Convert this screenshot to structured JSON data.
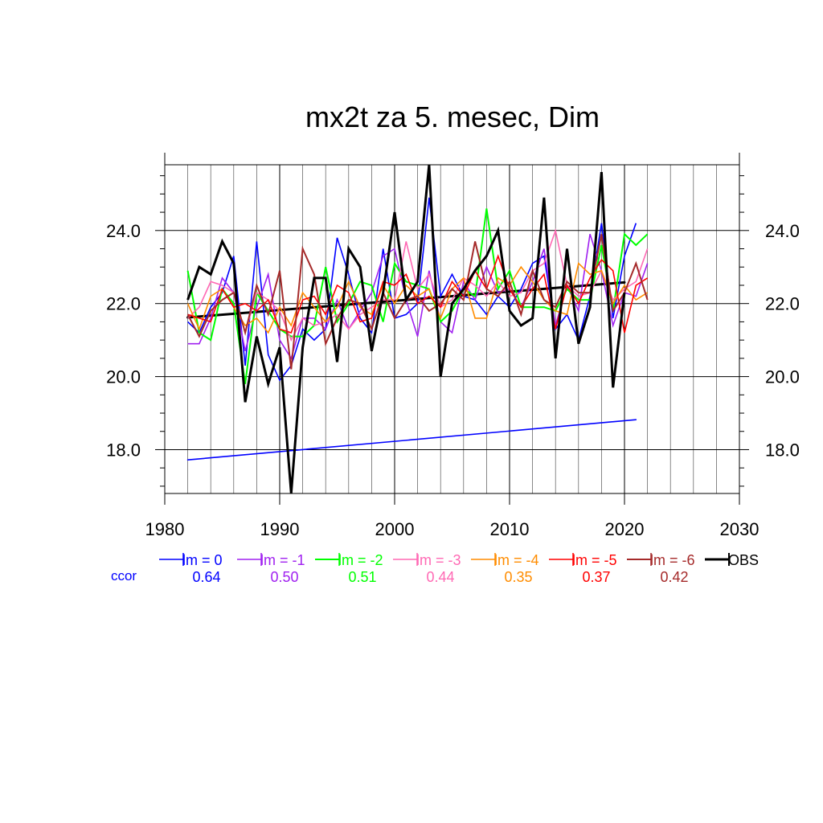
{
  "chart_data": {
    "type": "line",
    "title": "mx2t za 5. mesec, Dim",
    "xlabel": "",
    "ylabel": "",
    "xlim": [
      1980,
      2030
    ],
    "ylim": [
      16.8,
      25.8
    ],
    "x_ticks": [
      1980,
      1990,
      2000,
      2010,
      2020,
      2030
    ],
    "y_ticks": [
      18.0,
      20.0,
      22.0,
      24.0
    ],
    "y_tick_labels": [
      "18.0",
      "20.0",
      "22.0",
      "24.0"
    ],
    "grid": true,
    "legend_position": "bottom",
    "ccor_label": "ccor",
    "series": [
      {
        "name": "lm = 0",
        "color": "#0000ff",
        "ccor": "0.64",
        "width": 1.6,
        "x": [
          1982,
          1983,
          1984,
          1985,
          1986,
          1987,
          1988,
          1989,
          1990,
          1991,
          1992,
          1993,
          1994,
          1995,
          1996,
          1997,
          1998,
          1999,
          2000,
          2001,
          2002,
          2003,
          2004,
          2005,
          2006,
          2007,
          2008,
          2009,
          2010,
          2011,
          2012,
          2013,
          2014,
          2015,
          2016,
          2017,
          2018,
          2019,
          2020,
          2021
        ],
        "values": [
          21.5,
          21.2,
          21.9,
          22.3,
          23.3,
          20.3,
          23.7,
          20.6,
          19.9,
          20.3,
          21.3,
          21.0,
          21.3,
          23.8,
          22.8,
          21.6,
          21.2,
          23.5,
          21.6,
          21.7,
          22.0,
          24.9,
          22.2,
          22.8,
          22.2,
          22.1,
          21.7,
          22.2,
          21.9,
          22.4,
          23.1,
          23.3,
          21.3,
          21.7,
          21.0,
          22.2,
          24.2,
          21.6,
          23.3,
          24.2
        ]
      },
      {
        "name": "lm = -1",
        "color": "#a020f0",
        "ccor": "0.50",
        "width": 1.6,
        "x": [
          1982,
          1983,
          1984,
          1985,
          1986,
          1987,
          1988,
          1989,
          1990,
          1991,
          1992,
          1993,
          1994,
          1995,
          1996,
          1997,
          1998,
          1999,
          2000,
          2001,
          2002,
          2003,
          2004,
          2005,
          2006,
          2007,
          2008,
          2009,
          2010,
          2011,
          2012,
          2013,
          2014,
          2015,
          2016,
          2017,
          2018,
          2019,
          2020,
          2021,
          2022
        ],
        "values": [
          20.9,
          20.9,
          21.6,
          22.7,
          22.3,
          20.7,
          21.9,
          22.8,
          21.0,
          20.5,
          21.6,
          21.6,
          21.3,
          22.1,
          21.3,
          21.8,
          22.3,
          23.3,
          23.5,
          22.1,
          21.1,
          22.9,
          21.5,
          21.2,
          22.6,
          22.1,
          23.0,
          22.3,
          22.4,
          21.9,
          22.6,
          23.5,
          21.4,
          22.5,
          21.8,
          23.9,
          22.9,
          21.4,
          22.3,
          22.2,
          23.1
        ]
      },
      {
        "name": "lm = -2",
        "color": "#00ff00",
        "ccor": "0.51",
        "width": 2,
        "x": [
          1982,
          1983,
          1984,
          1985,
          1986,
          1987,
          1988,
          1989,
          1990,
          1991,
          1992,
          1993,
          1994,
          1995,
          1996,
          1997,
          1998,
          1999,
          2000,
          2001,
          2002,
          2003,
          2004,
          2005,
          2006,
          2007,
          2008,
          2009,
          2010,
          2011,
          2012,
          2013,
          2014,
          2015,
          2016,
          2017,
          2018,
          2019,
          2020,
          2021,
          2022
        ],
        "values": [
          22.9,
          21.2,
          21.0,
          22.4,
          22.0,
          19.8,
          22.3,
          21.8,
          21.3,
          21.1,
          21.1,
          21.4,
          23.0,
          21.5,
          22.0,
          22.6,
          22.5,
          21.5,
          23.1,
          22.6,
          22.5,
          22.4,
          21.5,
          21.8,
          22.4,
          22.2,
          24.6,
          22.4,
          22.9,
          21.9,
          21.9,
          21.9,
          21.8,
          22.4,
          22.1,
          22.1,
          23.6,
          21.8,
          23.9,
          23.6,
          23.9
        ]
      },
      {
        "name": "lm = -3",
        "color": "#ff69b4",
        "ccor": "0.44",
        "width": 1.6,
        "x": [
          1982,
          1983,
          1984,
          1985,
          1986,
          1987,
          1988,
          1989,
          1990,
          1991,
          1992,
          1993,
          1994,
          1995,
          1996,
          1997,
          1998,
          1999,
          2000,
          2001,
          2002,
          2003,
          2004,
          2005,
          2006,
          2007,
          2008,
          2009,
          2010,
          2011,
          2012,
          2013,
          2014,
          2015,
          2016,
          2017,
          2018,
          2019,
          2020,
          2021,
          2022
        ],
        "values": [
          21.6,
          21.9,
          22.6,
          22.5,
          22.3,
          21.2,
          22.3,
          22.1,
          21.8,
          21.0,
          21.6,
          21.4,
          21.5,
          21.7,
          21.3,
          21.7,
          21.9,
          22.1,
          22.1,
          23.7,
          22.4,
          22.8,
          21.9,
          22.1,
          22.7,
          22.5,
          22.2,
          22.6,
          22.2,
          22.3,
          22.9,
          23.1,
          24.0,
          22.5,
          22.2,
          22.3,
          22.9,
          22.1,
          22.4,
          22.6,
          23.5
        ]
      },
      {
        "name": "lm = -4",
        "color": "#ff8c00",
        "ccor": "0.35",
        "width": 1.6,
        "x": [
          1982,
          1983,
          1984,
          1985,
          1986,
          1987,
          1988,
          1989,
          1990,
          1991,
          1992,
          1993,
          1994,
          1995,
          1996,
          1997,
          1998,
          1999,
          2000,
          2001,
          2002,
          2003,
          2004,
          2005,
          2006,
          2007,
          2008,
          2009,
          2010,
          2011,
          2012,
          2013,
          2014,
          2015,
          2016,
          2017,
          2018,
          2019,
          2020,
          2021,
          2022
        ],
        "values": [
          22.0,
          21.3,
          22.2,
          22.4,
          21.9,
          21.4,
          21.6,
          21.2,
          21.9,
          21.4,
          22.3,
          21.9,
          21.5,
          21.9,
          22.6,
          21.9,
          21.7,
          22.5,
          22.0,
          22.5,
          22.2,
          22.4,
          21.6,
          22.4,
          22.7,
          21.6,
          21.6,
          22.7,
          22.5,
          23.0,
          22.6,
          22.1,
          21.8,
          21.7,
          23.1,
          22.8,
          22.9,
          22.0,
          22.5,
          22.1,
          22.3
        ]
      },
      {
        "name": "lm = -5",
        "color": "#ff0000",
        "ccor": "0.37",
        "width": 1.6,
        "x": [
          1982,
          1983,
          1984,
          1985,
          1986,
          1987,
          1988,
          1989,
          1990,
          1991,
          1992,
          1993,
          1994,
          1995,
          1996,
          1997,
          1998,
          1999,
          2000,
          2001,
          2002,
          2003,
          2004,
          2005,
          2006,
          2007,
          2008,
          2009,
          2010,
          2011,
          2012,
          2013,
          2014,
          2015,
          2016,
          2017,
          2018,
          2019,
          2020,
          2021,
          2022
        ],
        "values": [
          21.7,
          21.6,
          21.5,
          22.4,
          21.9,
          22.0,
          21.8,
          22.1,
          21.3,
          21.2,
          22.1,
          22.2,
          21.7,
          22.5,
          22.3,
          21.5,
          21.6,
          22.6,
          22.5,
          22.8,
          22.0,
          22.2,
          21.9,
          22.6,
          22.2,
          22.9,
          22.4,
          23.3,
          22.4,
          21.9,
          22.4,
          22.8,
          21.3,
          22.5,
          22.0,
          22.7,
          23.2,
          22.9,
          21.2,
          22.5,
          22.7
        ]
      },
      {
        "name": "lm = -6",
        "color": "#a52a2a",
        "ccor": "0.42",
        "width": 2,
        "x": [
          1982,
          1983,
          1984,
          1985,
          1986,
          1987,
          1988,
          1989,
          1990,
          1991,
          1992,
          1993,
          1994,
          1995,
          1996,
          1997,
          1998,
          1999,
          2000,
          2001,
          2002,
          2003,
          2004,
          2005,
          2006,
          2007,
          2008,
          2009,
          2010,
          2011,
          2012,
          2013,
          2014,
          2015,
          2016,
          2017,
          2018,
          2019,
          2020,
          2021,
          2022
        ],
        "values": [
          21.7,
          21.1,
          21.8,
          22.1,
          22.3,
          21.2,
          22.5,
          21.7,
          22.9,
          20.2,
          23.5,
          22.8,
          20.9,
          21.6,
          22.1,
          22.0,
          21.3,
          22.3,
          21.6,
          22.1,
          22.2,
          21.8,
          22.0,
          22.4,
          22.1,
          23.7,
          22.4,
          22.2,
          22.6,
          21.7,
          22.9,
          22.1,
          21.9,
          22.6,
          22.3,
          22.3,
          23.9,
          21.8,
          22.3,
          23.1,
          22.1
        ]
      },
      {
        "name": "OBS",
        "color": "#000000",
        "ccor": "",
        "width": 3,
        "x": [
          1982,
          1983,
          1984,
          1985,
          1986,
          1987,
          1988,
          1989,
          1990,
          1991,
          1992,
          1993,
          1994,
          1995,
          1996,
          1997,
          1998,
          1999,
          2000,
          2001,
          2002,
          2003,
          2004,
          2005,
          2006,
          2007,
          2008,
          2009,
          2010,
          2011,
          2012,
          2013,
          2014,
          2015,
          2016,
          2017,
          2018,
          2019,
          2020
        ],
        "values": [
          22.1,
          23.0,
          22.8,
          23.7,
          23.1,
          19.3,
          21.1,
          19.8,
          20.8,
          16.8,
          20.8,
          22.7,
          22.7,
          20.4,
          23.5,
          23.0,
          20.7,
          22.3,
          24.5,
          22.1,
          22.6,
          25.8,
          20.0,
          22.0,
          22.4,
          22.9,
          23.3,
          24.0,
          21.8,
          21.4,
          21.6,
          24.9,
          20.5,
          23.5,
          20.9,
          21.9,
          25.6,
          19.7,
          22.3
        ]
      }
    ],
    "trend_lines": [
      {
        "color": "#000000",
        "width": 3,
        "x": [
          1982,
          2020
        ],
        "values": [
          21.62,
          22.58
        ]
      },
      {
        "color": "#0000ff",
        "width": 1.6,
        "x": [
          1982,
          2021
        ],
        "values": [
          17.72,
          18.82
        ]
      }
    ]
  }
}
